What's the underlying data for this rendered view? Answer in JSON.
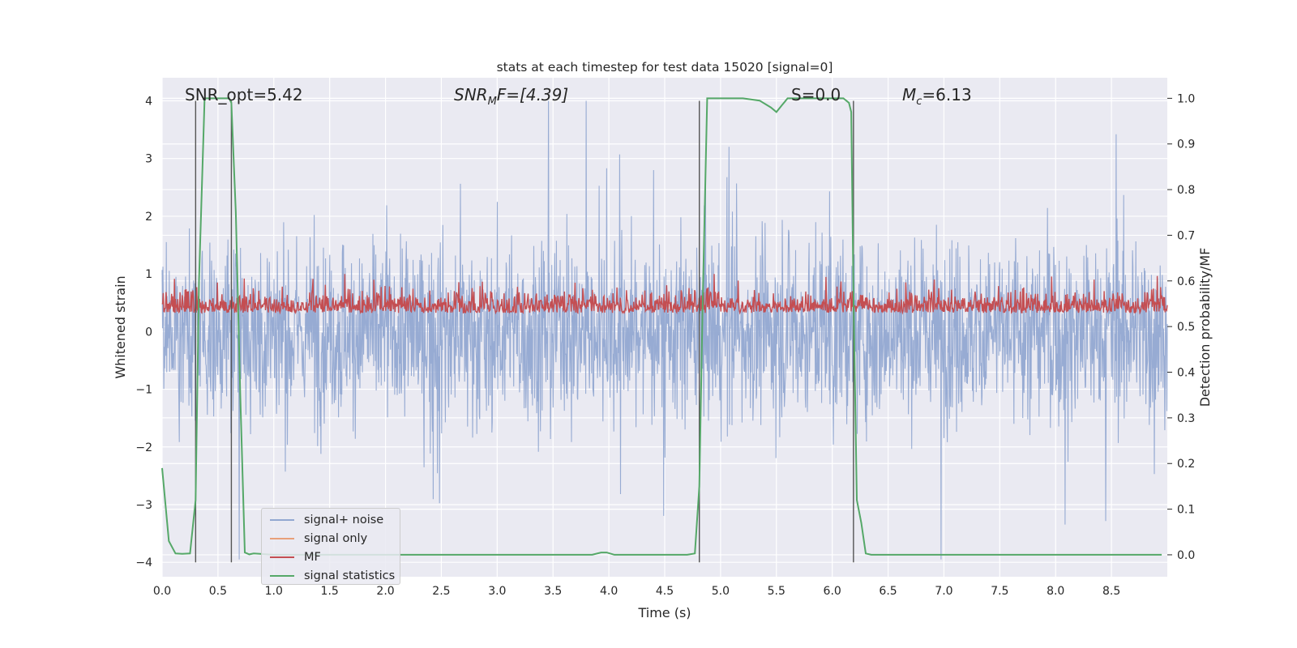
{
  "chart_data": {
    "type": "line",
    "title": "stats at each timestep for test data 15020 [signal=0]",
    "xlabel": "Time (s)",
    "ylabel": "Whitened strain",
    "ylabel_right": "Detection probability/MF",
    "xlim": [
      0.0,
      9.0
    ],
    "ylim": [
      -4.25,
      4.4
    ],
    "ylim_right": [
      -0.048,
      1.045
    ],
    "x_ticks": [
      "0.0",
      "0.5",
      "1.0",
      "1.5",
      "2.0",
      "2.5",
      "3.0",
      "3.5",
      "4.0",
      "4.5",
      "5.0",
      "5.5",
      "6.0",
      "6.5",
      "7.0",
      "7.5",
      "8.0",
      "8.5"
    ],
    "y_ticks": [
      "−4",
      "−3",
      "−2",
      "−1",
      "0",
      "1",
      "2",
      "3",
      "4"
    ],
    "y_ticks_right": [
      "0.0",
      "0.1",
      "0.2",
      "0.3",
      "0.4",
      "0.5",
      "0.6",
      "0.7",
      "0.8",
      "0.9",
      "1.0"
    ],
    "grid": true,
    "legend_position": "lower-left",
    "annotations": {
      "snr_opt": "SNR_opt=5.42",
      "snr_mf_prefix": "SNR",
      "snr_mf_sub": "M",
      "snr_mf_suffix": "F=[4.39]",
      "s_text": "S=0.0",
      "mc_prefix": "M",
      "mc_sub": "c",
      "mc_suffix": "=6.13"
    },
    "series": [
      {
        "name": "signal+ noise",
        "color": "#92a8d1",
        "description": "whitened noise, roughly within ±4"
      },
      {
        "name": "signal only",
        "color": "#e8a07a",
        "values": []
      },
      {
        "name": "MF",
        "color": "#c44e52",
        "right_axis": true
      },
      {
        "name": "signal statistics",
        "color": "#55a868",
        "right_axis": true,
        "x": [
          0.0,
          0.06,
          0.12,
          0.18,
          0.25,
          0.3,
          0.33,
          0.38,
          0.4,
          0.45,
          0.5,
          0.55,
          0.6,
          0.62,
          0.66,
          0.7,
          0.74,
          0.78,
          0.82,
          1.0,
          2.0,
          3.0,
          3.5,
          3.85,
          3.93,
          3.98,
          4.05,
          4.3,
          4.5,
          4.7,
          4.77,
          4.81,
          4.84,
          4.88,
          5.0,
          5.2,
          5.35,
          5.45,
          5.5,
          5.55,
          5.6,
          6.0,
          6.1,
          6.15,
          6.17,
          6.19,
          6.22,
          6.26,
          6.3,
          6.35,
          6.45,
          7.0,
          8.0,
          8.95
        ],
        "values": [
          0.19,
          0.03,
          0.003,
          0.002,
          0.003,
          0.12,
          0.6,
          1.0,
          1.0,
          1.0,
          1.0,
          1.0,
          1.0,
          0.99,
          0.75,
          0.35,
          0.005,
          0.001,
          0.003,
          0.0,
          0.0,
          0.0,
          0.0,
          0.0,
          0.005,
          0.005,
          0.0,
          0.0,
          0.0,
          0.0,
          0.003,
          0.15,
          0.55,
          1.0,
          1.0,
          1.0,
          0.995,
          0.98,
          0.97,
          0.985,
          1.0,
          1.0,
          1.0,
          0.99,
          0.97,
          0.58,
          0.12,
          0.07,
          0.003,
          0.0,
          0.0,
          0.0,
          0.0,
          0.0
        ]
      }
    ],
    "vertical_lines_x": [
      0.3,
      0.62,
      4.81,
      6.19
    ]
  }
}
